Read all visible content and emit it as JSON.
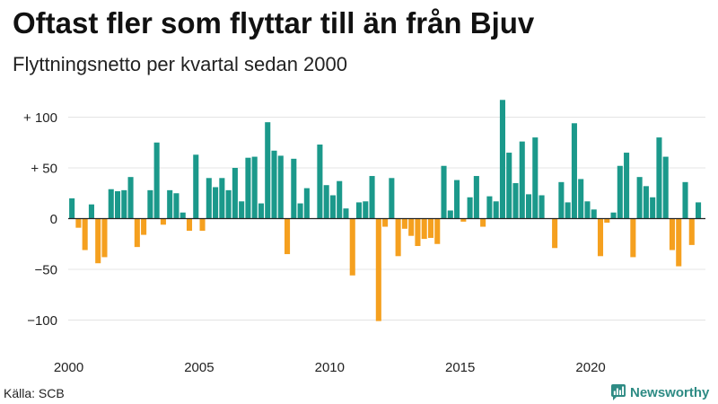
{
  "chart_data": {
    "type": "bar",
    "title": "Oftast fler som flyttar till än från Bjuv",
    "subtitle": "Flyttningsnetto per kvartal sedan 2000",
    "ylim": [
      -120,
      120
    ],
    "grid": true,
    "yticks": [
      {
        "value": 100,
        "label": "+ 100"
      },
      {
        "value": 50,
        "label": "+ 50"
      },
      {
        "value": 0,
        "label": "0"
      },
      {
        "value": -50,
        "label": "−50"
      },
      {
        "value": -100,
        "label": "−100"
      }
    ],
    "xticks": [
      2000,
      2005,
      2010,
      2015,
      2020
    ],
    "colors": {
      "positive": "#1b998b",
      "negative": "#f5a01f",
      "grid": "#e4e4e4",
      "zero_line": "#222222"
    },
    "data": [
      {
        "year": 2000,
        "quarters": [
          20,
          -9,
          -31,
          14
        ]
      },
      {
        "year": 2001,
        "quarters": [
          -44,
          -38,
          29,
          27
        ]
      },
      {
        "year": 2002,
        "quarters": [
          28,
          41,
          -28,
          -16
        ]
      },
      {
        "year": 2003,
        "quarters": [
          28,
          75,
          -6,
          28
        ]
      },
      {
        "year": 2004,
        "quarters": [
          25,
          6,
          -12,
          63
        ]
      },
      {
        "year": 2005,
        "quarters": [
          -12,
          40,
          31,
          40
        ]
      },
      {
        "year": 2006,
        "quarters": [
          28,
          50,
          17,
          60
        ]
      },
      {
        "year": 2007,
        "quarters": [
          61,
          15,
          95,
          67
        ]
      },
      {
        "year": 2008,
        "quarters": [
          62,
          -35,
          59,
          15
        ]
      },
      {
        "year": 2009,
        "quarters": [
          30,
          0,
          73,
          33
        ]
      },
      {
        "year": 2010,
        "quarters": [
          23,
          37,
          10,
          -56
        ]
      },
      {
        "year": 2011,
        "quarters": [
          16,
          17,
          42,
          -101
        ]
      },
      {
        "year": 2012,
        "quarters": [
          -8,
          40,
          -37,
          -10
        ]
      },
      {
        "year": 2013,
        "quarters": [
          -17,
          -27,
          -20,
          -19
        ]
      },
      {
        "year": 2014,
        "quarters": [
          -25,
          52,
          8,
          38
        ]
      },
      {
        "year": 2015,
        "quarters": [
          -3,
          21,
          42,
          -8
        ]
      },
      {
        "year": 2016,
        "quarters": [
          22,
          17,
          117,
          65
        ]
      },
      {
        "year": 2017,
        "quarters": [
          35,
          76,
          24,
          80
        ]
      },
      {
        "year": 2018,
        "quarters": [
          23,
          0,
          -29,
          36
        ]
      },
      {
        "year": 2019,
        "quarters": [
          16,
          94,
          39,
          17
        ]
      },
      {
        "year": 2020,
        "quarters": [
          9,
          -37,
          -4,
          6
        ]
      },
      {
        "year": 2021,
        "quarters": [
          52,
          65,
          -38,
          41
        ]
      },
      {
        "year": 2022,
        "quarters": [
          32,
          21,
          80,
          61
        ]
      },
      {
        "year": 2023,
        "quarters": [
          -31,
          -47,
          36,
          -26
        ]
      },
      {
        "year": 2024,
        "quarters": [
          16
        ]
      }
    ]
  },
  "source": "Källa: SCB",
  "logo": {
    "text": "Newsworthy",
    "icon": "chart-bubble-logo-icon",
    "color": "#2e8b84"
  }
}
